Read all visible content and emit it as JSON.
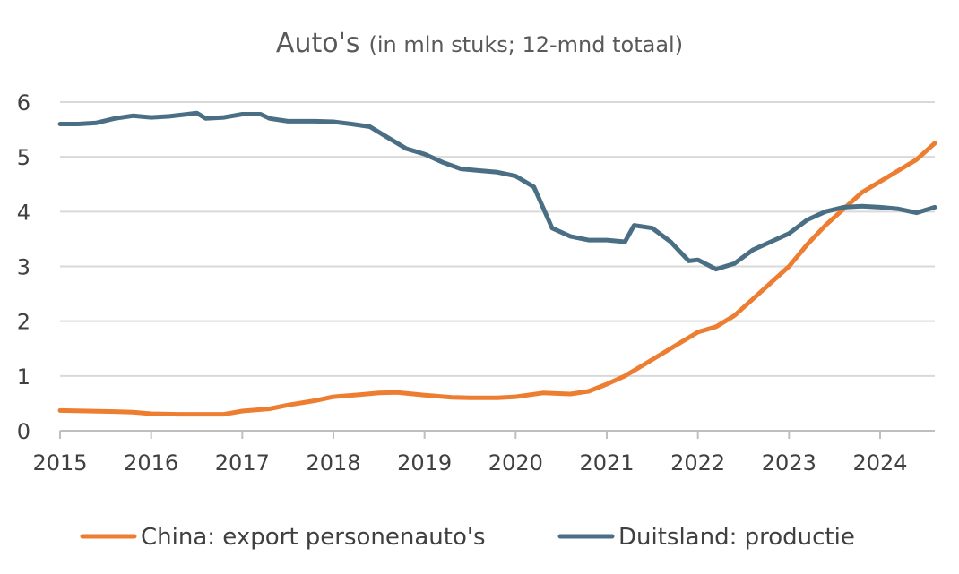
{
  "chart_data": {
    "type": "line",
    "title": "Auto's",
    "subtitle": "(in mln stuks; 12-mnd totaal)",
    "xlabel": "",
    "ylabel": "",
    "xlim": [
      2015,
      2024.6
    ],
    "ylim": [
      0,
      6
    ],
    "x_ticks": [
      2015,
      2016,
      2017,
      2018,
      2019,
      2020,
      2021,
      2022,
      2023,
      2024
    ],
    "y_ticks": [
      0,
      1,
      2,
      3,
      4,
      5,
      6
    ],
    "grid": true,
    "legend": "bottom",
    "series": [
      {
        "name": "China: export personenauto's",
        "color": "#ED7D31",
        "x": [
          2015,
          2015.3,
          2015.6,
          2015.8,
          2016,
          2016.3,
          2016.5,
          2016.8,
          2017,
          2017.3,
          2017.5,
          2017.8,
          2018,
          2018.3,
          2018.5,
          2018.7,
          2019,
          2019.3,
          2019.5,
          2019.8,
          2020,
          2020.3,
          2020.6,
          2020.8,
          2021,
          2021.2,
          2021.4,
          2021.6,
          2021.8,
          2022,
          2022.2,
          2022.4,
          2022.6,
          2022.8,
          2023,
          2023.2,
          2023.4,
          2023.6,
          2023.8,
          2024,
          2024.2,
          2024.4,
          2024.6
        ],
        "values": [
          0.37,
          0.36,
          0.35,
          0.34,
          0.31,
          0.3,
          0.3,
          0.3,
          0.36,
          0.4,
          0.47,
          0.55,
          0.62,
          0.66,
          0.69,
          0.7,
          0.65,
          0.61,
          0.6,
          0.6,
          0.62,
          0.69,
          0.67,
          0.72,
          0.85,
          1.0,
          1.2,
          1.4,
          1.6,
          1.8,
          1.9,
          2.1,
          2.4,
          2.7,
          3.0,
          3.4,
          3.75,
          4.05,
          4.35,
          4.55,
          4.75,
          4.95,
          5.25
        ]
      },
      {
        "name": "Duitsland: productie",
        "color": "#4A6F85",
        "x": [
          2015,
          2015.2,
          2015.4,
          2015.6,
          2015.8,
          2016,
          2016.2,
          2016.4,
          2016.5,
          2016.6,
          2016.8,
          2017,
          2017.2,
          2017.3,
          2017.5,
          2017.8,
          2018,
          2018.2,
          2018.4,
          2018.6,
          2018.8,
          2019,
          2019.2,
          2019.4,
          2019.6,
          2019.8,
          2020,
          2020.2,
          2020.4,
          2020.6,
          2020.8,
          2021,
          2021.2,
          2021.3,
          2021.5,
          2021.7,
          2021.9,
          2022,
          2022.2,
          2022.4,
          2022.6,
          2022.8,
          2023,
          2023.2,
          2023.4,
          2023.6,
          2023.8,
          2024,
          2024.2,
          2024.4,
          2024.6
        ],
        "values": [
          5.6,
          5.6,
          5.62,
          5.7,
          5.75,
          5.72,
          5.74,
          5.78,
          5.8,
          5.7,
          5.72,
          5.78,
          5.78,
          5.7,
          5.65,
          5.65,
          5.64,
          5.6,
          5.55,
          5.35,
          5.15,
          5.05,
          4.9,
          4.78,
          4.75,
          4.72,
          4.65,
          4.45,
          3.7,
          3.55,
          3.48,
          3.48,
          3.45,
          3.75,
          3.7,
          3.45,
          3.1,
          3.12,
          2.95,
          3.05,
          3.3,
          3.45,
          3.6,
          3.85,
          4.0,
          4.08,
          4.1,
          4.08,
          4.05,
          3.98,
          4.08
        ]
      }
    ]
  }
}
